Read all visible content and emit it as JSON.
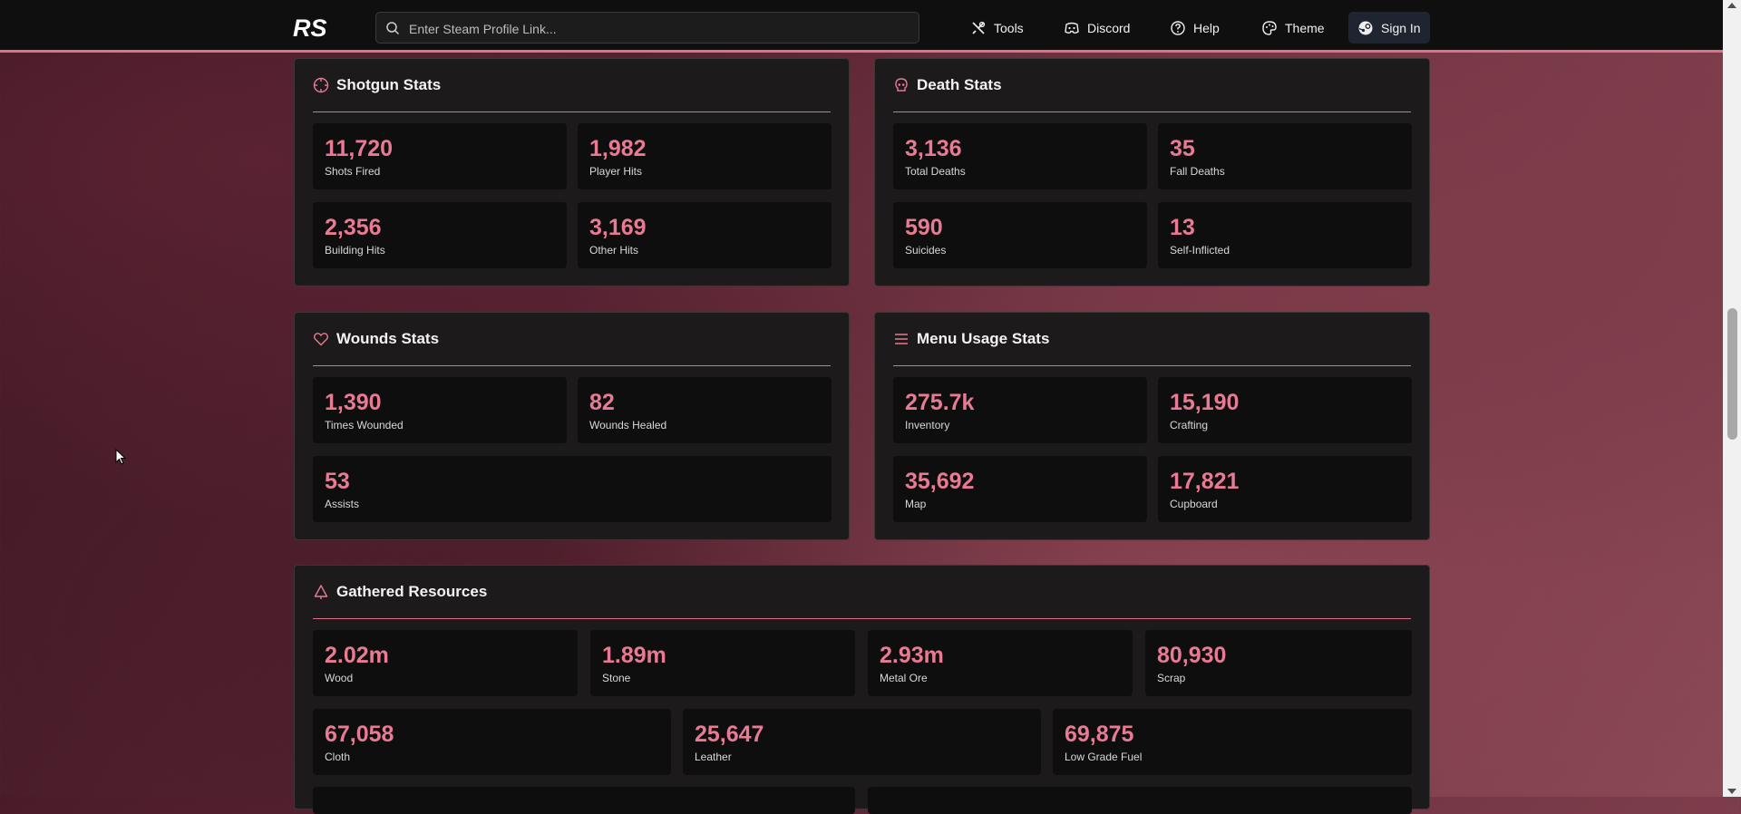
{
  "header": {
    "logo_text": "RS",
    "search_placeholder": "Enter Steam Profile Link...",
    "nav": {
      "tools": "Tools",
      "discord": "Discord",
      "help": "Help",
      "theme": "Theme",
      "signin": "Sign In"
    }
  },
  "colors": {
    "accent": "#e87a93",
    "panel": "#1d1a1b",
    "tile": "#0e0e0f"
  },
  "shotgun": {
    "title": "Shotgun Stats",
    "stats": [
      {
        "value": "11,720",
        "label": "Shots Fired"
      },
      {
        "value": "1,982",
        "label": "Player Hits"
      },
      {
        "value": "2,356",
        "label": "Building Hits"
      },
      {
        "value": "3,169",
        "label": "Other Hits"
      }
    ]
  },
  "death": {
    "title": "Death Stats",
    "stats": [
      {
        "value": "3,136",
        "label": "Total Deaths"
      },
      {
        "value": "35",
        "label": "Fall Deaths"
      },
      {
        "value": "590",
        "label": "Suicides"
      },
      {
        "value": "13",
        "label": "Self-Inflicted"
      }
    ]
  },
  "wounds": {
    "title": "Wounds Stats",
    "stats": [
      {
        "value": "1,390",
        "label": "Times Wounded"
      },
      {
        "value": "82",
        "label": "Wounds Healed"
      },
      {
        "value": "53",
        "label": "Assists"
      }
    ]
  },
  "menu": {
    "title": "Menu Usage Stats",
    "stats": [
      {
        "value": "275.7k",
        "label": "Inventory"
      },
      {
        "value": "15,190",
        "label": "Crafting"
      },
      {
        "value": "35,692",
        "label": "Map"
      },
      {
        "value": "17,821",
        "label": "Cupboard"
      }
    ]
  },
  "resources": {
    "title": "Gathered Resources",
    "stats": [
      {
        "value": "2.02m",
        "label": "Wood"
      },
      {
        "value": "1.89m",
        "label": "Stone"
      },
      {
        "value": "2.93m",
        "label": "Metal Ore"
      },
      {
        "value": "80,930",
        "label": "Scrap"
      },
      {
        "value": "67,058",
        "label": "Cloth"
      },
      {
        "value": "25,647",
        "label": "Leather"
      },
      {
        "value": "69,875",
        "label": "Low Grade Fuel"
      }
    ]
  }
}
